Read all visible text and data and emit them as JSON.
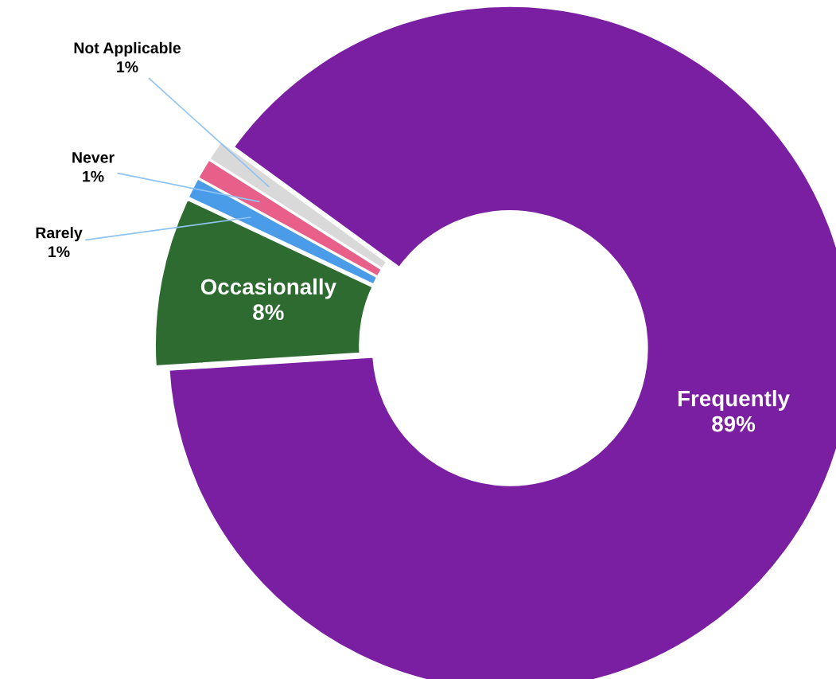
{
  "chart_data": {
    "type": "donut",
    "categories": [
      "Frequently",
      "Occasionally",
      "Rarely",
      "Never",
      "Not Applicable"
    ],
    "values": [
      89,
      8,
      1,
      1,
      1
    ],
    "colors": [
      "#7b1fa2",
      "#2e6b30",
      "#4a9be8",
      "#e8608a",
      "#d9d9d9"
    ],
    "value_labels": [
      "89%",
      "8%",
      "1%",
      "1%",
      "1%"
    ]
  }
}
